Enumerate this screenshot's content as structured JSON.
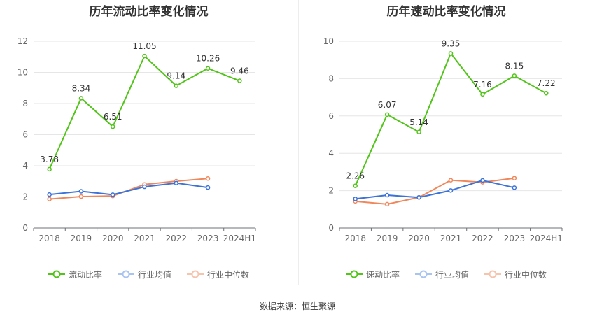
{
  "footer": {
    "source_text": "数据来源：恒生聚源"
  },
  "colors": {
    "series1": "#52c41a",
    "series2": "#3b73d9",
    "series3": "#f0875a"
  },
  "chart_data": [
    {
      "type": "line",
      "title": "历年流动比率变化情况",
      "categories": [
        "2018",
        "2019",
        "2020",
        "2021",
        "2022",
        "2023",
        "2024H1"
      ],
      "ylim": [
        0,
        12
      ],
      "yticks": [
        0,
        2,
        4,
        6,
        8,
        10,
        12
      ],
      "grid": true,
      "legend_position": "bottom",
      "series": [
        {
          "name": "流动比率",
          "values": [
            3.78,
            8.34,
            6.51,
            11.05,
            9.14,
            10.26,
            9.46
          ],
          "labels": [
            "3.78",
            "8.34",
            "6.51",
            "11.05",
            "9.14",
            "10.26",
            "9.46"
          ]
        },
        {
          "name": "行业均值",
          "values": [
            2.15,
            2.36,
            2.14,
            2.65,
            2.89,
            2.6,
            null
          ]
        },
        {
          "name": "行业中位数",
          "values": [
            1.86,
            2.02,
            2.06,
            2.8,
            3.01,
            3.18,
            null
          ]
        }
      ]
    },
    {
      "type": "line",
      "title": "历年速动比率变化情况",
      "categories": [
        "2018",
        "2019",
        "2020",
        "2021",
        "2022",
        "2023",
        "2024H1"
      ],
      "ylim": [
        0,
        10
      ],
      "yticks": [
        0,
        2,
        4,
        6,
        8,
        10
      ],
      "grid": true,
      "legend_position": "bottom",
      "series": [
        {
          "name": "速动比率",
          "values": [
            2.26,
            6.07,
            5.14,
            9.35,
            7.16,
            8.15,
            7.22
          ],
          "labels": [
            "2.26",
            "6.07",
            "5.14",
            "9.35",
            "7.16",
            "8.15",
            "7.22"
          ]
        },
        {
          "name": "行业均值",
          "values": [
            1.56,
            1.76,
            1.64,
            2.01,
            2.55,
            2.16,
            null
          ]
        },
        {
          "name": "行业中位数",
          "values": [
            1.43,
            1.28,
            1.64,
            2.56,
            2.45,
            2.67,
            null
          ]
        }
      ]
    }
  ]
}
